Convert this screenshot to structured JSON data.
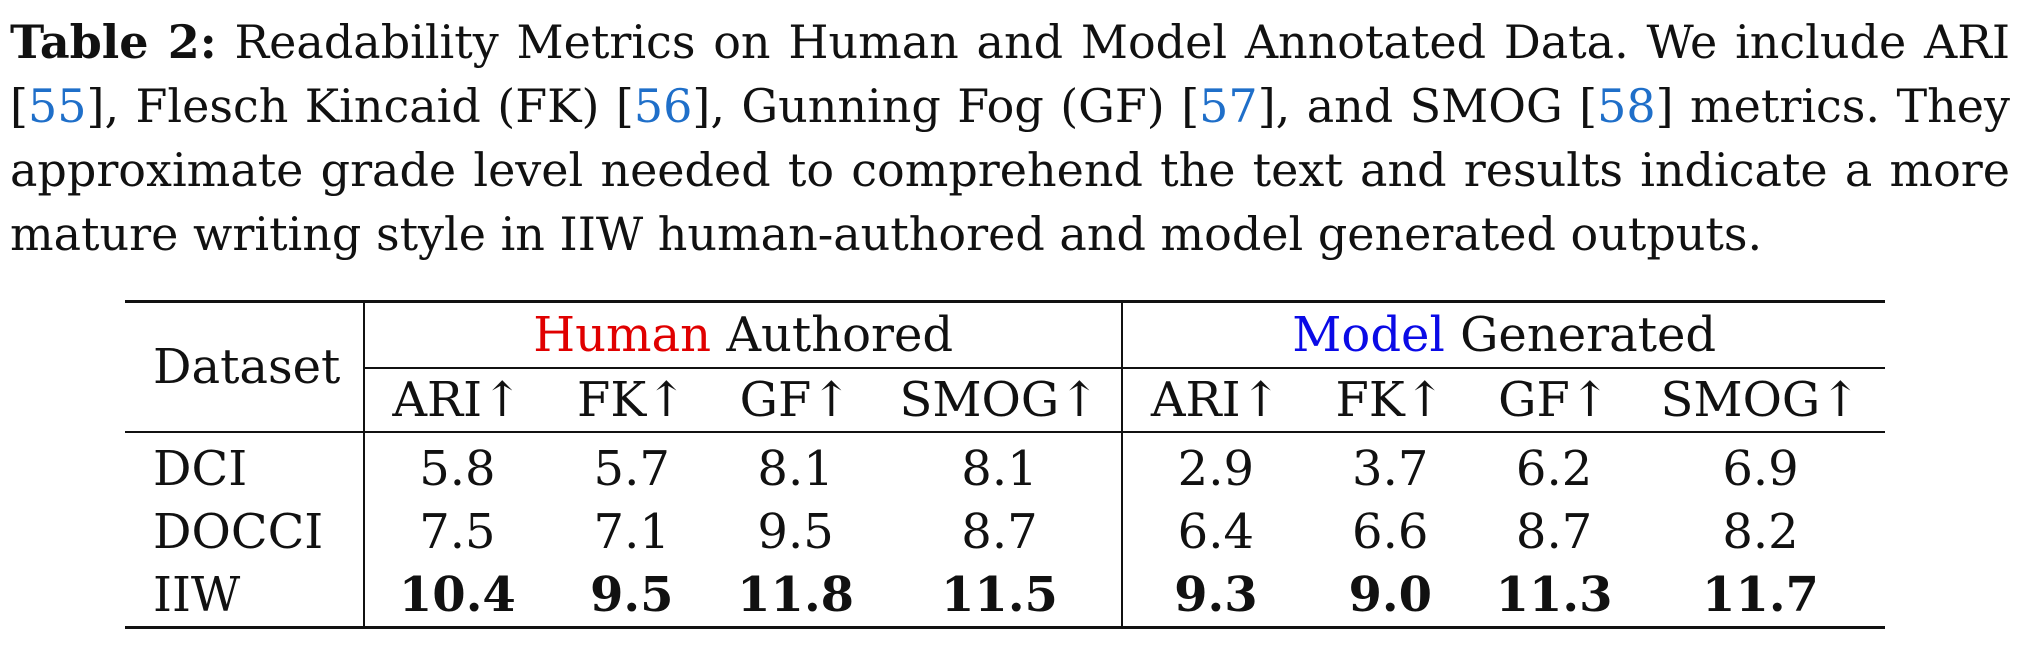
{
  "caption": {
    "label": "Table 2:",
    "text_1": " Readability Metrics on Human and Model Annotated Data. We include ARI [",
    "cite_1": "55",
    "text_2": "], Flesch Kincaid (FK) [",
    "cite_2": "56",
    "text_3": "], Gunning Fog (GF) [",
    "cite_3": "57",
    "text_4": "], and SMOG [",
    "cite_4": "58",
    "text_5": "] metrics. They approximate grade level needed to comprehend the text and results indicate a more mature writing style in IIW human-authored and model generated outputs."
  },
  "table": {
    "dataset_header": "Dataset",
    "group_human": {
      "highlight": "Human",
      "rest": " Authored",
      "highlight_color": "#e00000"
    },
    "group_model": {
      "highlight": "Model",
      "rest": " Generated",
      "highlight_color": "#0a0ae6"
    },
    "metric_headers": [
      "ARI↑",
      "FK↑",
      "GF↑",
      "SMOG↑",
      "ARI↑",
      "FK↑",
      "GF↑",
      "SMOG↑"
    ],
    "rows": [
      {
        "name": "DCI",
        "values": [
          "5.8",
          "5.7",
          "8.1",
          "8.1",
          "2.9",
          "3.7",
          "6.2",
          "6.9"
        ],
        "bold": false
      },
      {
        "name": "DOCCI",
        "values": [
          "7.5",
          "7.1",
          "9.5",
          "8.7",
          "6.4",
          "6.6",
          "8.7",
          "8.2"
        ],
        "bold": false
      },
      {
        "name": "IIW",
        "values": [
          "10.4",
          "9.5",
          "11.8",
          "11.5",
          "9.3",
          "9.0",
          "11.3",
          "11.7"
        ],
        "bold": true
      }
    ]
  }
}
